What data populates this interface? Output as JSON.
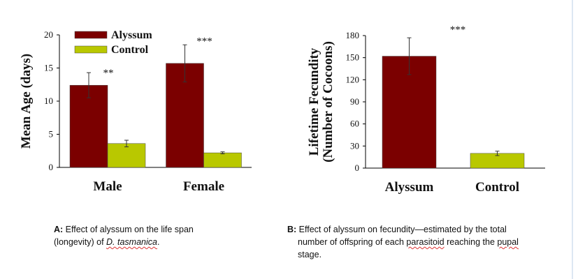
{
  "chart_data": [
    {
      "type": "bar",
      "categories": [
        "Male",
        "Female"
      ],
      "series": [
        {
          "name": "Alyssum",
          "color": "#7b0000",
          "values": [
            12.4,
            15.7
          ],
          "errors": [
            1.9,
            2.8
          ]
        },
        {
          "name": "Control",
          "color": "#b9c800",
          "values": [
            3.6,
            2.2
          ],
          "errors": [
            0.5,
            0.15
          ]
        }
      ],
      "ylabel": "Mean Age (days)",
      "ylim": [
        0,
        20
      ],
      "yticks": [
        "0",
        "5",
        "10",
        "15",
        "20"
      ],
      "significance": [
        "**",
        "***"
      ],
      "legend_position": "top-left",
      "grid": false
    },
    {
      "type": "bar",
      "categories": [
        "Alyssum",
        "Control"
      ],
      "series": [
        {
          "colors": [
            "#7b0000",
            "#b9c800"
          ],
          "values": [
            152,
            20
          ],
          "errors": [
            25,
            3
          ]
        }
      ],
      "ylabel_line1": "Lifetime Fecundity",
      "ylabel_line2": "(Number of Cocoons)",
      "ylim": [
        0,
        180
      ],
      "yticks": [
        "0",
        "30",
        "60",
        "90",
        "120",
        "150",
        "180"
      ],
      "significance": [
        "***"
      ],
      "grid": false
    }
  ],
  "captions": {
    "a": {
      "label": "A:",
      "text_1": " Effect of alyssum on the life span",
      "text_2": "(longevity) of ",
      "species": "D. tasmanica",
      "text_end": "."
    },
    "b": {
      "label": "B:",
      "text_1": " Effect of alyssum on fecundity—estimated by the total",
      "text_2a": "number of offspring of each ",
      "parasitoid": "parasitoid",
      "text_2b": " reaching the ",
      "pupal": "pupal",
      "text_3": "stage."
    }
  }
}
